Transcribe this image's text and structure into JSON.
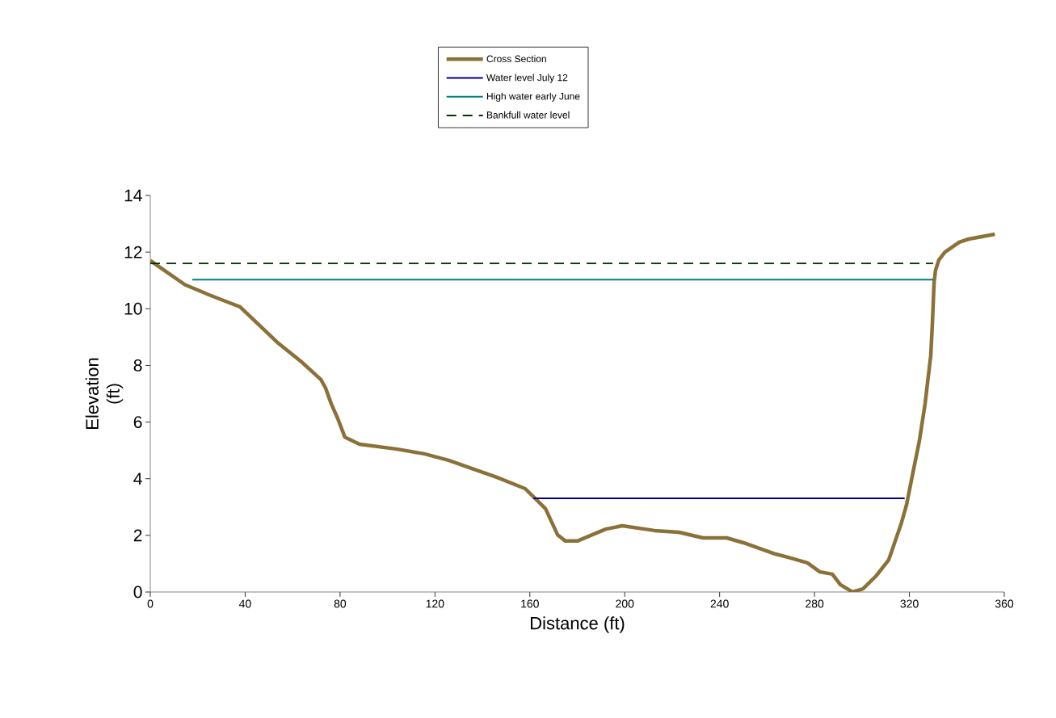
{
  "chart_data": {
    "type": "line",
    "xlabel": "Distance (ft)",
    "ylabel": "Elevation (ft)",
    "xlim": [
      0,
      360
    ],
    "xticks": [
      0,
      40,
      80,
      120,
      160,
      200,
      240,
      280,
      320,
      360
    ],
    "ylim": [
      0,
      14
    ],
    "yticks": [
      0,
      2,
      4,
      6,
      8,
      10,
      12,
      14
    ],
    "legend": "top",
    "marker": "none",
    "series": [
      {
        "name": "Cross Section",
        "color": "#8b7038",
        "line_style": "solid",
        "x": [
          0,
          14.6,
          24.5,
          33.7,
          37.8,
          42.2,
          54,
          63.4,
          71.9,
          73.9,
          76.3,
          79,
          82,
          88.2,
          103.5,
          115.5,
          125.7,
          146,
          158,
          162.5,
          166.6,
          171.7,
          175,
          180,
          192,
          199,
          212.5,
          222.8,
          233,
          243,
          250,
          263.6,
          268.7,
          277,
          282.3,
          287.5,
          290.9,
          296,
          300.4,
          306,
          311.3,
          316.5,
          318.8,
          321.5,
          324.2,
          326.6,
          329,
          329.7,
          330.4,
          331,
          332.4,
          335,
          341,
          345,
          356
        ],
        "values": [
          11.7,
          10.85,
          10.5,
          10.2,
          10.07,
          9.72,
          8.78,
          8.15,
          7.5,
          7.2,
          6.64,
          6.13,
          5.47,
          5.22,
          5.05,
          4.88,
          4.65,
          4.05,
          3.65,
          3.28,
          2.94,
          2.02,
          1.8,
          1.8,
          2.22,
          2.34,
          2.17,
          2.11,
          1.91,
          1.91,
          1.74,
          1.34,
          1.23,
          1.03,
          0.71,
          0.63,
          0.26,
          0,
          0.11,
          0.57,
          1.14,
          2.4,
          3.08,
          4.22,
          5.33,
          6.64,
          8.35,
          9.5,
          10.92,
          11.35,
          11.72,
          12.0,
          12.35,
          12.46,
          12.63
        ]
      },
      {
        "name": "Water level July 12",
        "color": "#000090",
        "line_style": "solid",
        "x": [
          161.5,
          318
        ],
        "values": [
          3.31,
          3.31
        ]
      },
      {
        "name": "High water early June",
        "color": "#008080",
        "line_style": "solid",
        "x": [
          17.7,
          330
        ],
        "values": [
          11.03,
          11.03
        ]
      },
      {
        "name": "Bankfull water level",
        "color": "#003300",
        "line_style": "dashed",
        "x": [
          0,
          330
        ],
        "values": [
          11.6,
          11.6
        ]
      }
    ]
  }
}
